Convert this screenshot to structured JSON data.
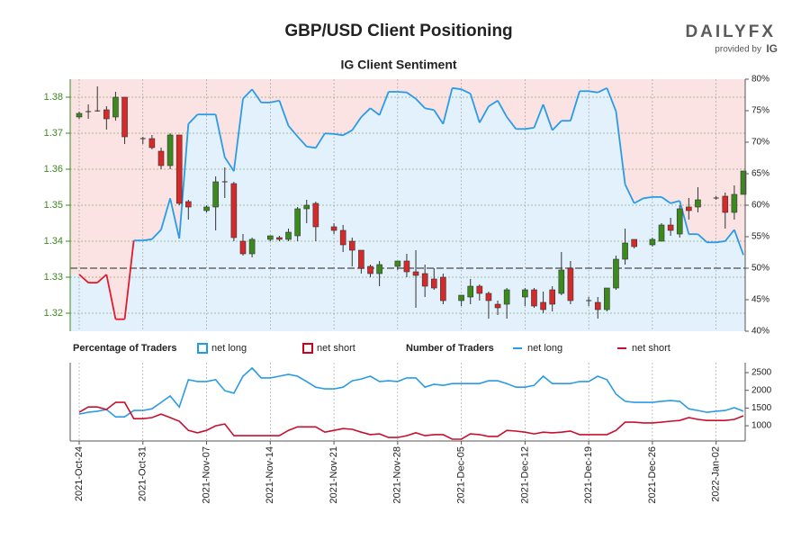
{
  "title": "GBP/USD Client Positioning",
  "logo": {
    "brand": "DAILYFX",
    "provided_by": "provided by",
    "ig": "IG"
  },
  "chart_data": [
    {
      "type": "candlestick",
      "subtitle": "IG Client Sentiment",
      "open": [
        1.3745,
        1.376,
        1.3762,
        1.3765,
        1.3745,
        1.38,
        null,
        1.3685,
        1.3685,
        1.365,
        1.361,
        1.3695,
        1.351,
        null,
        1.3485,
        1.3495,
        1.3565,
        1.356,
        1.34,
        1.3365,
        null,
        1.3405,
        1.341,
        1.3405,
        1.3415,
        1.349,
        1.3505,
        null,
        1.344,
        1.343,
        1.34,
        1.3375,
        1.333,
        1.331,
        null,
        1.333,
        1.3345,
        1.3315,
        1.331,
        1.3295,
        1.33,
        null,
        1.3235,
        1.3245,
        1.3275,
        1.3255,
        1.3225,
        1.3225,
        null,
        1.3245,
        1.3265,
        1.323,
        1.3265,
        1.3255,
        1.3325,
        null,
        1.3235,
        1.323,
        1.321,
        1.327,
        1.335,
        1.3405,
        null,
        1.339,
        1.34,
        1.3445,
        1.342,
        1.3495,
        1.3495,
        null,
        1.352,
        1.3525,
        1.348,
        1.353
      ],
      "high": [
        1.376,
        1.378,
        1.383,
        1.3775,
        1.3815,
        1.38,
        null,
        1.369,
        1.3695,
        1.366,
        1.37,
        1.3695,
        1.3515,
        null,
        1.35,
        1.358,
        1.3605,
        1.3565,
        1.342,
        1.341,
        null,
        1.3415,
        1.3415,
        1.3435,
        1.3495,
        1.3515,
        1.351,
        null,
        1.345,
        1.3445,
        1.341,
        1.3375,
        1.3335,
        1.3345,
        null,
        1.3345,
        1.3365,
        1.3375,
        1.3335,
        1.3325,
        1.331,
        null,
        1.325,
        1.3295,
        1.328,
        1.326,
        1.3235,
        1.327,
        null,
        1.327,
        1.327,
        1.326,
        1.3275,
        1.337,
        1.3345,
        null,
        1.3245,
        1.3245,
        1.327,
        1.336,
        1.3435,
        1.3405,
        null,
        1.341,
        1.345,
        1.3465,
        1.35,
        1.352,
        1.355,
        null,
        1.3525,
        1.3535,
        1.3555,
        1.3595
      ],
      "low": [
        1.374,
        1.374,
        1.376,
        1.371,
        1.3735,
        1.367,
        null,
        1.367,
        1.3655,
        1.36,
        1.36,
        1.35,
        1.346,
        null,
        1.348,
        1.343,
        1.352,
        1.34,
        1.336,
        1.3355,
        null,
        1.34,
        1.34,
        1.34,
        1.34,
        1.345,
        1.34,
        null,
        1.342,
        1.337,
        1.333,
        1.331,
        1.33,
        1.3275,
        null,
        1.332,
        1.33,
        1.3215,
        1.3245,
        1.3265,
        1.3225,
        null,
        1.322,
        1.3225,
        1.3235,
        1.3185,
        1.3195,
        1.3185,
        null,
        1.322,
        1.3215,
        1.32,
        1.3205,
        1.325,
        1.3225,
        null,
        1.322,
        1.3185,
        1.3205,
        1.3265,
        1.3335,
        1.338,
        null,
        1.3385,
        1.34,
        1.3415,
        1.341,
        1.346,
        1.348,
        null,
        1.3515,
        1.3435,
        1.346,
        1.353
      ],
      "close": [
        1.3755,
        1.3762,
        1.3762,
        1.374,
        1.38,
        1.369,
        null,
        1.3685,
        1.366,
        1.361,
        1.3695,
        1.3505,
        1.3495,
        null,
        1.3495,
        1.3565,
        1.3565,
        1.341,
        1.3365,
        1.3405,
        null,
        1.3415,
        1.3405,
        1.3425,
        1.349,
        1.35,
        1.344,
        null,
        1.343,
        1.339,
        1.3375,
        1.3325,
        1.331,
        1.3335,
        null,
        1.3345,
        1.3315,
        1.3305,
        1.3275,
        1.327,
        1.3235,
        null,
        1.325,
        1.3275,
        1.3255,
        1.3235,
        1.3215,
        1.3265,
        null,
        1.3265,
        1.322,
        1.321,
        1.3225,
        1.332,
        1.3235,
        null,
        1.3235,
        1.321,
        1.327,
        1.335,
        1.3395,
        1.3385,
        null,
        1.3405,
        1.3445,
        1.343,
        1.349,
        1.3485,
        1.3515,
        null,
        1.352,
        1.348,
        1.353,
        1.3595
      ],
      "up_color": "#3c8a1e",
      "down_color": "#d42a2a",
      "ylim": [
        1.315,
        1.385
      ],
      "yticks": [
        1.32,
        1.33,
        1.34,
        1.35,
        1.36,
        1.37,
        1.38
      ],
      "y2lim": [
        40,
        80
      ],
      "y2ticks": [
        {
          "value": 40,
          "label": "40%"
        },
        {
          "value": 45,
          "label": "45%"
        },
        {
          "value": 50,
          "label": "50%"
        },
        {
          "value": 55,
          "label": "55%"
        },
        {
          "value": 60,
          "label": "60%"
        },
        {
          "value": 65,
          "label": "65%"
        },
        {
          "value": 70,
          "label": "70%"
        },
        {
          "value": 75,
          "label": "75%"
        },
        {
          "value": 80,
          "label": "80%"
        }
      ],
      "sentiment": {
        "axis": "y2",
        "color": "#2b9be6",
        "below_color": "#e01b2b",
        "threshold": 50,
        "values": [
          49.0,
          47.7,
          47.7,
          49.0,
          41.9,
          41.9,
          54.4,
          54.4,
          54.6,
          56.1,
          61.1,
          54.7,
          72.9,
          74.4,
          74.4,
          74.4,
          67.6,
          65.4,
          76.9,
          78.4,
          76.3,
          76.3,
          76.6,
          72.6,
          70.9,
          69.3,
          69.1,
          71.4,
          71.3,
          71.1,
          71.9,
          74.0,
          75.4,
          74.3,
          78.0,
          78.0,
          77.9,
          76.9,
          75.4,
          75.1,
          72.9,
          78.6,
          78.4,
          77.7,
          73.1,
          75.7,
          76.6,
          74.0,
          72.1,
          72.1,
          72.3,
          76.0,
          71.9,
          73.4,
          73.4,
          78.1,
          78.1,
          77.9,
          78.6,
          74.9,
          63.3,
          60.3,
          61.1,
          61.3,
          61.3,
          60.3,
          60.7,
          55.4,
          55.4,
          54.1,
          54.1,
          54.3,
          56.1,
          52.1
        ]
      },
      "fill_legend": {
        "title": "Percentage of Traders",
        "items": [
          {
            "name": "net long",
            "color": "#1e9be9",
            "fill": "#e2f1fb"
          },
          {
            "name": "net short",
            "color": "#d0021b",
            "fill": "#fbe3e3"
          }
        ]
      },
      "grid": true
    },
    {
      "type": "line",
      "legend_title": "Number of Traders",
      "categories": [
        "2021-Oct-24",
        null,
        null,
        null,
        null,
        null,
        null,
        "2021-Oct-31",
        null,
        null,
        null,
        null,
        null,
        null,
        "2021-Nov-07",
        null,
        null,
        null,
        null,
        null,
        null,
        "2021-Nov-14",
        null,
        null,
        null,
        null,
        null,
        null,
        "2021-Nov-21",
        null,
        null,
        null,
        null,
        null,
        null,
        "2021-Nov-28",
        null,
        null,
        null,
        null,
        null,
        null,
        "2021-Dec-05",
        null,
        null,
        null,
        null,
        null,
        null,
        "2021-Dec-12",
        null,
        null,
        null,
        null,
        null,
        null,
        "2021-Dec-19",
        null,
        null,
        null,
        null,
        null,
        null,
        "2021-Dec-26",
        null,
        null,
        null,
        null,
        null,
        null,
        "2022-Jan-02",
        null,
        null,
        null
      ],
      "series": [
        {
          "name": "net long",
          "color": "#2b9be6",
          "values": [
            1330,
            1380,
            1410,
            1460,
            1250,
            1250,
            1430,
            1430,
            1480,
            1660,
            1840,
            1530,
            2300,
            2250,
            2250,
            2300,
            1990,
            1920,
            2400,
            2630,
            2350,
            2350,
            2400,
            2450,
            2400,
            2250,
            2090,
            2040,
            2040,
            2090,
            2270,
            2320,
            2400,
            2250,
            2270,
            2250,
            2350,
            2350,
            2090,
            2170,
            2140,
            2190,
            2190,
            2190,
            2190,
            2270,
            2270,
            2190,
            2090,
            2090,
            2140,
            2400,
            2190,
            2190,
            2190,
            2250,
            2250,
            2400,
            2300,
            1890,
            1690,
            1660,
            1660,
            1660,
            1690,
            1710,
            1690,
            1480,
            1430,
            1380,
            1410,
            1430,
            1510,
            1410
          ]
        },
        {
          "name": "net short",
          "color": "#c8102e",
          "values": [
            1380,
            1530,
            1530,
            1460,
            1660,
            1660,
            1200,
            1200,
            1230,
            1330,
            1230,
            1130,
            870,
            800,
            870,
            1000,
            1050,
            720,
            720,
            720,
            720,
            720,
            720,
            870,
            970,
            970,
            970,
            820,
            870,
            920,
            900,
            820,
            750,
            770,
            670,
            670,
            720,
            800,
            720,
            750,
            750,
            620,
            620,
            770,
            750,
            700,
            700,
            870,
            850,
            820,
            770,
            820,
            800,
            820,
            850,
            750,
            750,
            750,
            750,
            870,
            1100,
            1100,
            1080,
            1080,
            1100,
            1130,
            1150,
            1230,
            1180,
            1150,
            1150,
            1150,
            1180,
            1280
          ]
        }
      ],
      "ylim": [
        570,
        2780
      ],
      "yticks": [
        1000,
        1500,
        2000,
        2500
      ]
    }
  ]
}
